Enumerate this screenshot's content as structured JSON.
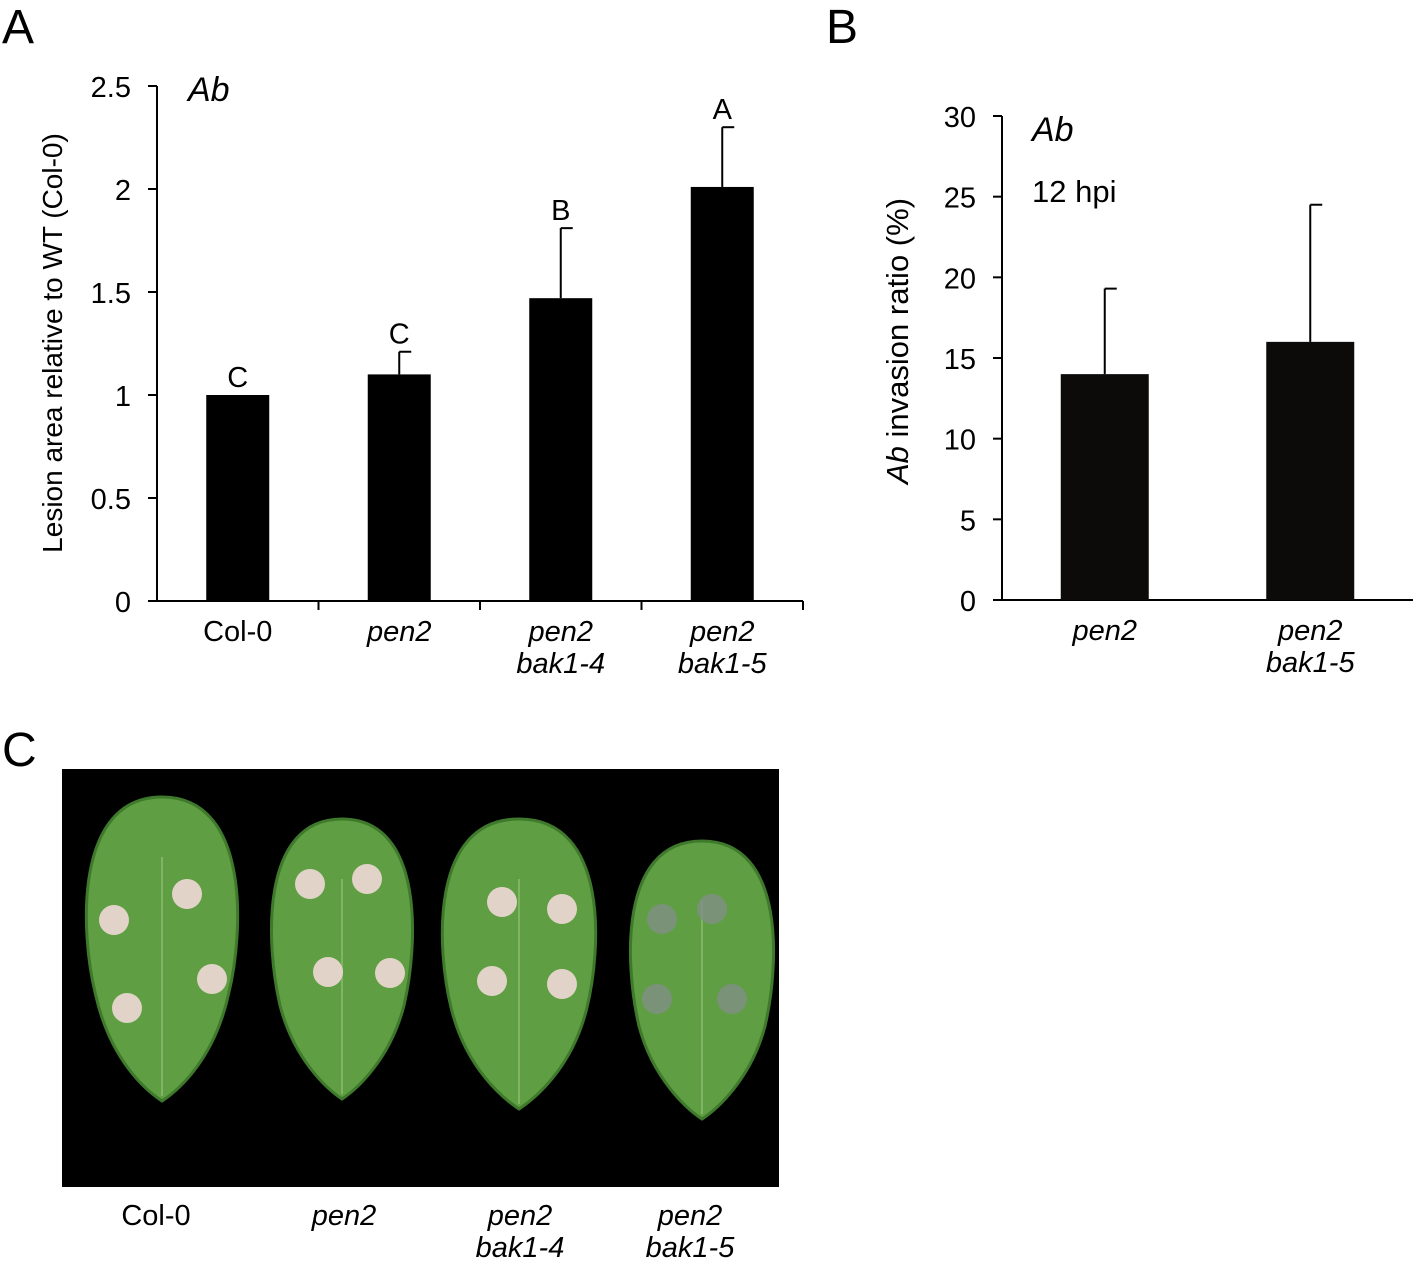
{
  "panels": {
    "A": "A",
    "B": "B",
    "C": "C"
  },
  "chart_data": [
    {
      "type": "bar",
      "panel": "A",
      "annotation": "Ab",
      "ylabel": "Lesion area relative to WT (Col-0)",
      "xlabel": "",
      "ylim": [
        0,
        2.5
      ],
      "yticks": [
        0,
        0.5,
        1,
        1.5,
        2,
        2.5
      ],
      "ytick_labels": [
        "0",
        "0.5",
        "1",
        "1.5",
        "2",
        "2.5"
      ],
      "categories": [
        {
          "line1": "Col-0",
          "line2": "",
          "italic": false
        },
        {
          "line1": "pen2",
          "line2": "",
          "italic": true
        },
        {
          "line1": "pen2",
          "line2": "bak1-4",
          "italic": true
        },
        {
          "line1": "pen2",
          "line2": "bak1-5",
          "italic": true
        }
      ],
      "values": [
        1.0,
        1.1,
        1.47,
        2.01
      ],
      "errors": [
        0.0,
        0.11,
        0.34,
        0.29
      ],
      "significance": [
        "C",
        "C",
        "B",
        "A"
      ],
      "bar_color": "#000000",
      "grid": false
    },
    {
      "type": "bar",
      "panel": "B",
      "annotation": "Ab",
      "subannotation": "12 hpi",
      "ylabel_italic": "Ab",
      "ylabel_rest": " invasion ratio (%)",
      "xlabel": "",
      "ylim": [
        0,
        30
      ],
      "yticks": [
        0,
        5,
        10,
        15,
        20,
        25,
        30
      ],
      "ytick_labels": [
        "0",
        "5",
        "10",
        "15",
        "20",
        "25",
        "30"
      ],
      "categories": [
        {
          "line1": "pen2",
          "line2": "",
          "italic": true
        },
        {
          "line1": "pen2",
          "line2": "bak1-5",
          "italic": true
        }
      ],
      "values": [
        14.0,
        16.0
      ],
      "errors": [
        5.3,
        8.5
      ],
      "bar_color": "#0d0a0a",
      "grid": false
    }
  ],
  "photo": {
    "background": "#000000",
    "leaf_color": "#5f9e43",
    "leaf_dark": "#3f7a2c",
    "lesion_color": "#e8d6cf",
    "labels": [
      {
        "line1": "Col-0",
        "line2": "",
        "italic": false
      },
      {
        "line1": "pen2",
        "line2": "",
        "italic": true
      },
      {
        "line1": "pen2",
        "line2": "bak1-4",
        "italic": true
      },
      {
        "line1": "pen2",
        "line2": "bak1-5",
        "italic": true
      }
    ]
  }
}
